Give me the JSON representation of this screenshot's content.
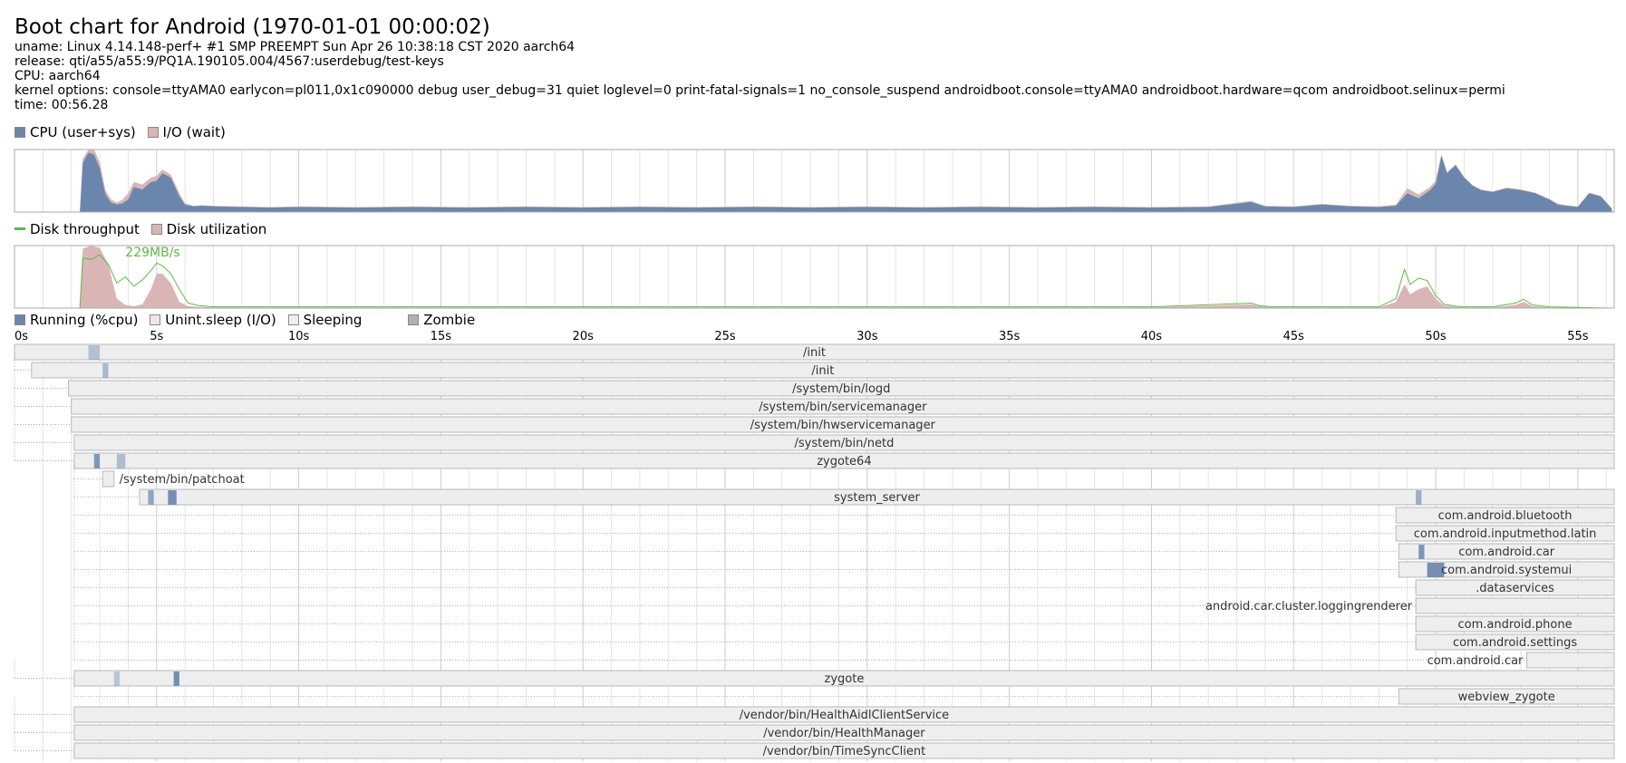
{
  "header": {
    "title": "Boot chart for Android (1970-01-01 00:00:02)",
    "uname": "uname: Linux 4.14.148-perf+ #1 SMP PREEMPT Sun Apr 26 10:38:18 CST 2020 aarch64",
    "release": "release: qti/a55/a55:9/PQ1A.190105.004/4567:userdebug/test-keys",
    "cpu": "CPU: aarch64",
    "kernel_options": "kernel options: console=ttyAMA0 earlycon=pl011,0x1c090000 debug user_debug=31 quiet loglevel=0 print-fatal-signals=1 no_console_suspend androidboot.console=ttyAMA0 androidboot.hardware=qcom androidboot.selinux=permi",
    "time": "time: 00:56.28"
  },
  "legends": {
    "cpu": [
      {
        "label": "CPU (user+sys)",
        "color": "#6b86ac"
      },
      {
        "label": "I/O (wait)",
        "color": "#d9b6b5"
      }
    ],
    "disk": [
      {
        "label": "Disk throughput",
        "color": "#5fb847",
        "kind": "line"
      },
      {
        "label": "Disk utilization",
        "color": "#d9b6b5"
      }
    ],
    "processes": [
      {
        "label": "Running (%cpu)",
        "color": "#6b86ac"
      },
      {
        "label": "Unint.sleep (I/O)",
        "color": "#f3e4e4"
      },
      {
        "label": "Sleeping",
        "color": "#eeeeee"
      },
      {
        "label": "Zombie",
        "color": "#b0b0b0"
      }
    ]
  },
  "colors": {
    "cpu": "#6b86ac",
    "io": "#d9b6b5",
    "disk_throughput": "#5fb847",
    "disk_utilization": "#d9b6b5",
    "process_bar": "#eeeeee",
    "border": "#aaaaaa"
  },
  "chart_data": [
    {
      "type": "area",
      "name": "cpu",
      "x": [
        0,
        2.3,
        2.4,
        2.6,
        2.8,
        3.0,
        3.2,
        3.4,
        3.6,
        3.8,
        4.0,
        4.2,
        4.5,
        4.8,
        5.0,
        5.2,
        5.5,
        5.8,
        6.0,
        6.3,
        6.6,
        7,
        8,
        9,
        10,
        12,
        14,
        16,
        18,
        20,
        22,
        24,
        26,
        28,
        30,
        32,
        34,
        36,
        38,
        40,
        42,
        43.5,
        44,
        45,
        46,
        47,
        48,
        48.6,
        49,
        49.4,
        49.8,
        50.0,
        50.2,
        50.4,
        50.7,
        51.0,
        51.3,
        51.6,
        52.0,
        52.5,
        53.0,
        53.5,
        54.0,
        54.3,
        54.6,
        55.0,
        55.4,
        55.8,
        56.2
      ],
      "series": [
        {
          "name": "CPU (user+sys)",
          "values": [
            0,
            0,
            78,
            95,
            92,
            70,
            28,
            15,
            12,
            14,
            20,
            40,
            36,
            48,
            50,
            62,
            55,
            25,
            12,
            9,
            10,
            9,
            8,
            7,
            8,
            7,
            8,
            7,
            8,
            7,
            8,
            7,
            8,
            7,
            8,
            7,
            8,
            7,
            8,
            7,
            8,
            16,
            9,
            8,
            12,
            9,
            8,
            10,
            30,
            22,
            35,
            45,
            90,
            62,
            75,
            55,
            42,
            35,
            32,
            38,
            35,
            30,
            20,
            12,
            10,
            8,
            30,
            25,
            5
          ]
        },
        {
          "name": "I/O (wait)",
          "values": [
            0,
            0,
            85,
            100,
            100,
            80,
            35,
            20,
            15,
            20,
            30,
            48,
            44,
            55,
            58,
            68,
            60,
            30,
            14,
            10,
            11,
            10,
            9,
            8,
            9,
            8,
            9,
            8,
            9,
            8,
            9,
            8,
            9,
            8,
            9,
            8,
            9,
            8,
            9,
            8,
            9,
            18,
            10,
            9,
            13,
            10,
            9,
            12,
            38,
            28,
            40,
            50,
            92,
            64,
            76,
            56,
            43,
            36,
            33,
            39,
            36,
            31,
            21,
            13,
            11,
            9,
            31,
            26,
            6
          ]
        }
      ],
      "xlim": [
        0,
        56.28
      ],
      "ylim": [
        0,
        100
      ]
    },
    {
      "type": "area",
      "name": "disk",
      "annotation": "229MB/s",
      "x": [
        0,
        2.3,
        2.4,
        2.7,
        3.0,
        3.3,
        3.6,
        3.9,
        4.2,
        4.5,
        4.8,
        5.0,
        5.2,
        5.5,
        5.8,
        6.1,
        6.5,
        7,
        10,
        15,
        20,
        25,
        30,
        35,
        40,
        43.5,
        43.8,
        44.2,
        48,
        48.6,
        48.9,
        49.1,
        49.4,
        49.7,
        50.0,
        50.3,
        50.7,
        51,
        52,
        52.8,
        53.1,
        53.4,
        54,
        56.28
      ],
      "series": [
        {
          "name": "Disk utilization",
          "values": [
            0,
            0,
            95,
            100,
            96,
            70,
            15,
            5,
            3,
            6,
            30,
            55,
            55,
            40,
            10,
            3,
            2,
            1,
            1,
            1,
            1,
            1,
            1,
            1,
            1,
            6,
            3,
            1,
            1,
            10,
            38,
            22,
            30,
            35,
            15,
            4,
            2,
            1,
            1,
            5,
            10,
            3,
            1,
            0
          ]
        },
        {
          "name": "Disk throughput",
          "values": [
            0,
            0,
            80,
            78,
            85,
            70,
            40,
            50,
            35,
            45,
            60,
            72,
            68,
            55,
            30,
            8,
            4,
            2,
            2,
            2,
            2,
            2,
            2,
            2,
            2,
            8,
            4,
            2,
            2,
            15,
            62,
            38,
            48,
            44,
            20,
            6,
            3,
            2,
            2,
            8,
            14,
            5,
            2,
            0
          ]
        }
      ],
      "xlim": [
        0,
        56.28
      ],
      "ylim": [
        0,
        100
      ]
    },
    {
      "type": "table",
      "name": "process timeline",
      "xlabels": [
        "0s",
        "5s",
        "10s",
        "15s",
        "20s",
        "25s",
        "30s",
        "35s",
        "40s",
        "45s",
        "50s",
        "55s"
      ],
      "xlim": [
        0,
        56.28
      ],
      "processes": [
        {
          "name": "/init",
          "start": 0.0,
          "parent_start": null,
          "label_side": "center",
          "running": [
            [
              2.6,
              3.0,
              0.25
            ]
          ]
        },
        {
          "name": "/init",
          "start": 0.6,
          "parent_start": 0.0,
          "label_side": "center",
          "running": [
            [
              3.1,
              3.3,
              0.35
            ]
          ]
        },
        {
          "name": "/system/bin/logd",
          "start": 1.9,
          "parent_start": 0.0,
          "label_side": "center",
          "running": []
        },
        {
          "name": "/system/bin/servicemanager",
          "start": 2.0,
          "parent_start": 0.0,
          "label_side": "center",
          "running": []
        },
        {
          "name": "/system/bin/hwservicemanager",
          "start": 2.0,
          "parent_start": 0.0,
          "label_side": "center",
          "running": []
        },
        {
          "name": "/system/bin/netd",
          "start": 2.1,
          "parent_start": 0.0,
          "label_side": "center",
          "running": []
        },
        {
          "name": "zygote64",
          "start": 2.1,
          "parent_start": 0.0,
          "label_side": "center",
          "running": [
            [
              2.8,
              3.0,
              0.8
            ],
            [
              3.6,
              3.9,
              0.3
            ]
          ]
        },
        {
          "name": "/system/bin/patchoat",
          "start": 3.1,
          "parent_start": 2.1,
          "end": 3.5,
          "label_side": "right",
          "running": []
        },
        {
          "name": "system_server",
          "start": 4.4,
          "parent_start": 2.1,
          "label_side": "center",
          "running": [
            [
              4.7,
              4.9,
              0.6
            ],
            [
              5.4,
              5.7,
              0.9
            ],
            [
              49.3,
              49.5,
              0.5
            ]
          ]
        },
        {
          "name": "com.android.bluetooth",
          "start": 48.6,
          "parent_start": 2.1,
          "label_side": "center",
          "running": []
        },
        {
          "name": "com.android.inputmethod.latin",
          "start": 48.6,
          "parent_start": 2.1,
          "label_side": "center",
          "running": []
        },
        {
          "name": "com.android.car",
          "start": 48.7,
          "parent_start": 2.1,
          "label_side": "center",
          "running": [
            [
              49.4,
              49.6,
              0.8
            ]
          ]
        },
        {
          "name": "com.android.systemui",
          "start": 48.7,
          "parent_start": 2.1,
          "label_side": "center",
          "running": [
            [
              49.7,
              50.3,
              0.9
            ]
          ]
        },
        {
          "name": ".dataservices",
          "start": 49.3,
          "parent_start": 2.1,
          "label_side": "center",
          "running": []
        },
        {
          "name": "android.car.cluster.loggingrenderer",
          "start": 49.3,
          "parent_start": 2.1,
          "label_side": "left",
          "running": []
        },
        {
          "name": "com.android.phone",
          "start": 49.3,
          "parent_start": 2.1,
          "label_side": "center",
          "running": []
        },
        {
          "name": "com.android.settings",
          "start": 49.3,
          "parent_start": 2.1,
          "label_side": "center",
          "running": []
        },
        {
          "name": "com.android.car",
          "start": 53.2,
          "parent_start": 2.1,
          "label_side": "left",
          "running": []
        },
        {
          "name": "zygote",
          "start": 2.1,
          "parent_start": 0.0,
          "label_side": "center",
          "running": [
            [
              3.5,
              3.7,
              0.2
            ],
            [
              5.6,
              5.8,
              0.9
            ]
          ]
        },
        {
          "name": "webview_zygote",
          "start": 48.7,
          "parent_start": 2.1,
          "label_side": "center",
          "running": []
        },
        {
          "name": "/vendor/bin/HealthAidlClientService",
          "start": 2.1,
          "parent_start": 0.0,
          "label_side": "center",
          "running": []
        },
        {
          "name": "/vendor/bin/HealthManager",
          "start": 2.1,
          "parent_start": 0.0,
          "label_side": "center",
          "running": []
        },
        {
          "name": "/vendor/bin/TimeSyncClient",
          "start": 2.1,
          "parent_start": 0.0,
          "label_side": "center",
          "running": []
        }
      ]
    }
  ]
}
